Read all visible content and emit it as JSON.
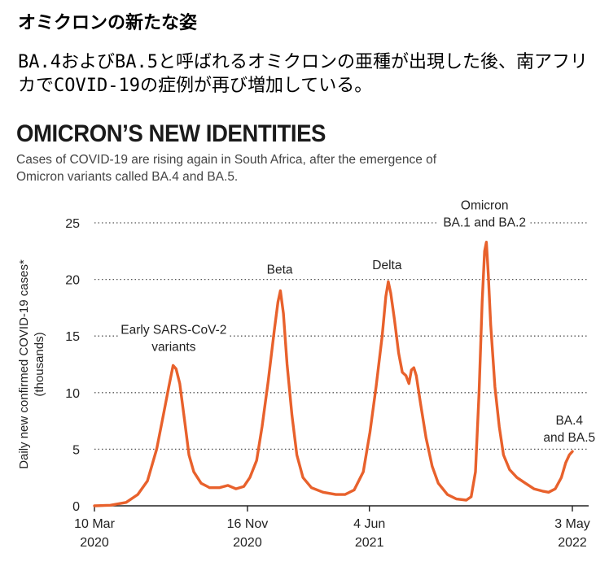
{
  "page": {
    "jp_title": "オミクロンの新たな姿",
    "jp_subtitle": "BA.4およびBA.5と呼ばれるオミクロンの亜種が出現した後、南アフリカでCOVID-19の症例が再び増加している。"
  },
  "chart_data": {
    "type": "line",
    "title": "OMICRON’S NEW IDENTITIES",
    "subtitle": "Cases of COVID-19 are rising again in South Africa, after the emergence of Omicron variants called BA.4 and BA.5.",
    "ylabel": "Daily new confirmed COVID-19 cases* (thousands)",
    "ylim": [
      0,
      25
    ],
    "yticks": [
      0,
      5,
      10,
      15,
      20,
      25
    ],
    "grid": true,
    "colors": {
      "line": "#e8612c",
      "grid": "#555555",
      "axis": "#222222"
    },
    "x_range": [
      "2020-03-10",
      "2022-05-03"
    ],
    "xticks": [
      {
        "date": "2020-03-10",
        "label1": "10 Mar",
        "label2": "2020"
      },
      {
        "date": "2020-11-16",
        "label1": "16 Nov",
        "label2": "2020"
      },
      {
        "date": "2021-06-04",
        "label1": "4 Jun",
        "label2": "2021"
      },
      {
        "date": "2022-05-03",
        "label1": "3 May",
        "label2": "2022"
      }
    ],
    "annotations": [
      {
        "lines": [
          "Early SARS-CoV-2",
          "variants"
        ],
        "date": "2020-07-18",
        "y": 15.2
      },
      {
        "lines": [
          "Beta"
        ],
        "date": "2021-01-08",
        "y": 20.5
      },
      {
        "lines": [
          "Delta"
        ],
        "date": "2021-07-03",
        "y": 20.9
      },
      {
        "lines": [
          "Omicron",
          "BA.1 and BA.2"
        ],
        "date": "2021-12-10",
        "y": 26.2
      },
      {
        "lines": [
          "BA.4",
          "and BA.5"
        ],
        "date": "2022-04-28",
        "y": 7.2
      }
    ],
    "series": [
      {
        "points": [
          [
            "2020-03-10",
            0.0
          ],
          [
            "2020-04-05",
            0.05
          ],
          [
            "2020-05-01",
            0.3
          ],
          [
            "2020-05-20",
            1.0
          ],
          [
            "2020-06-05",
            2.2
          ],
          [
            "2020-06-20",
            5.0
          ],
          [
            "2020-07-01",
            8.0
          ],
          [
            "2020-07-10",
            10.5
          ],
          [
            "2020-07-17",
            12.4
          ],
          [
            "2020-07-22",
            12.1
          ],
          [
            "2020-07-28",
            10.8
          ],
          [
            "2020-08-05",
            7.5
          ],
          [
            "2020-08-12",
            4.5
          ],
          [
            "2020-08-20",
            3.0
          ],
          [
            "2020-09-01",
            2.0
          ],
          [
            "2020-09-15",
            1.6
          ],
          [
            "2020-10-01",
            1.6
          ],
          [
            "2020-10-15",
            1.8
          ],
          [
            "2020-10-28",
            1.5
          ],
          [
            "2020-11-10",
            1.7
          ],
          [
            "2020-11-20",
            2.5
          ],
          [
            "2020-12-01",
            4.0
          ],
          [
            "2020-12-10",
            7.0
          ],
          [
            "2020-12-20",
            11.0
          ],
          [
            "2020-12-30",
            15.5
          ],
          [
            "2021-01-05",
            18.0
          ],
          [
            "2021-01-09",
            19.0
          ],
          [
            "2021-01-14",
            17.0
          ],
          [
            "2021-01-20",
            12.5
          ],
          [
            "2021-01-28",
            8.0
          ],
          [
            "2021-02-05",
            4.5
          ],
          [
            "2021-02-15",
            2.5
          ],
          [
            "2021-03-01",
            1.6
          ],
          [
            "2021-03-20",
            1.2
          ],
          [
            "2021-04-10",
            1.0
          ],
          [
            "2021-04-25",
            1.0
          ],
          [
            "2021-05-10",
            1.4
          ],
          [
            "2021-05-25",
            3.0
          ],
          [
            "2021-06-05",
            6.5
          ],
          [
            "2021-06-15",
            10.5
          ],
          [
            "2021-06-25",
            15.0
          ],
          [
            "2021-07-01",
            18.5
          ],
          [
            "2021-07-05",
            19.8
          ],
          [
            "2021-07-09",
            18.8
          ],
          [
            "2021-07-15",
            16.5
          ],
          [
            "2021-07-22",
            13.5
          ],
          [
            "2021-07-28",
            11.8
          ],
          [
            "2021-08-03",
            11.5
          ],
          [
            "2021-08-08",
            10.8
          ],
          [
            "2021-08-12",
            12.0
          ],
          [
            "2021-08-16",
            12.2
          ],
          [
            "2021-08-20",
            11.5
          ],
          [
            "2021-08-27",
            9.0
          ],
          [
            "2021-09-05",
            6.0
          ],
          [
            "2021-09-15",
            3.5
          ],
          [
            "2021-09-25",
            2.0
          ],
          [
            "2021-10-10",
            1.0
          ],
          [
            "2021-10-25",
            0.6
          ],
          [
            "2021-11-10",
            0.5
          ],
          [
            "2021-11-18",
            0.8
          ],
          [
            "2021-11-25",
            3.0
          ],
          [
            "2021-12-01",
            10.0
          ],
          [
            "2021-12-06",
            18.0
          ],
          [
            "2021-12-10",
            22.5
          ],
          [
            "2021-12-13",
            23.3
          ],
          [
            "2021-12-16",
            20.5
          ],
          [
            "2021-12-20",
            16.0
          ],
          [
            "2021-12-27",
            10.5
          ],
          [
            "2022-01-03",
            7.0
          ],
          [
            "2022-01-10",
            4.5
          ],
          [
            "2022-01-20",
            3.2
          ],
          [
            "2022-02-01",
            2.5
          ],
          [
            "2022-02-15",
            2.0
          ],
          [
            "2022-03-01",
            1.5
          ],
          [
            "2022-03-15",
            1.3
          ],
          [
            "2022-03-25",
            1.2
          ],
          [
            "2022-04-05",
            1.5
          ],
          [
            "2022-04-15",
            2.5
          ],
          [
            "2022-04-22",
            3.8
          ],
          [
            "2022-04-28",
            4.5
          ],
          [
            "2022-05-03",
            4.8
          ]
        ]
      }
    ]
  }
}
